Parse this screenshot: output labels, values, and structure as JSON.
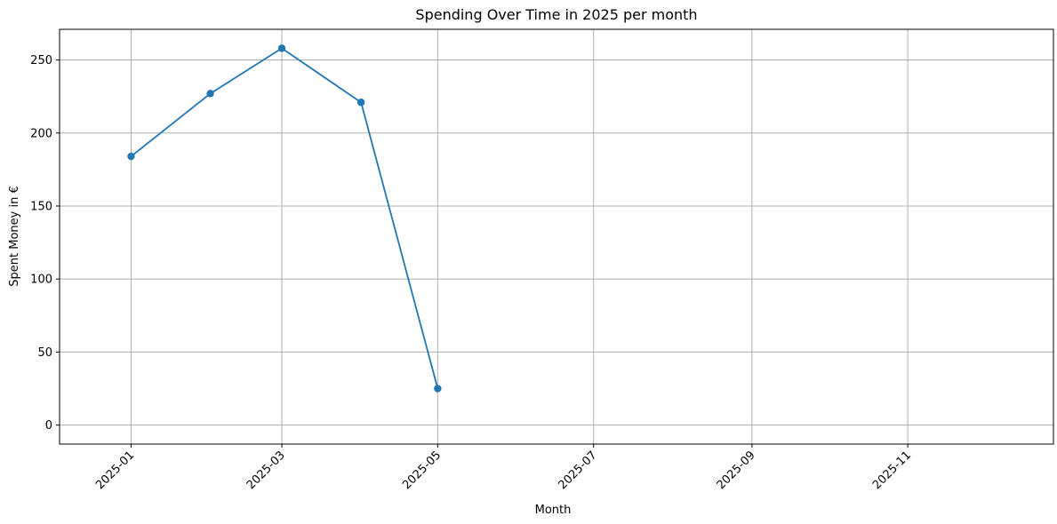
{
  "chart_data": {
    "type": "line",
    "title": "Spending Over Time in 2025 per month",
    "xlabel": "Month",
    "ylabel": "Spent Money in €",
    "x": [
      "2025-01",
      "2025-02",
      "2025-03",
      "2025-04",
      "2025-05"
    ],
    "series": [
      {
        "values": [
          184,
          227,
          258,
          221,
          25
        ],
        "color": "#1f77b4"
      }
    ],
    "xlim": [
      "2024-12-04",
      "2025-12-28"
    ],
    "ylim": [
      -13,
      271
    ],
    "x_ticks": [
      "2025-01",
      "2025-03",
      "2025-05",
      "2025-07",
      "2025-09",
      "2025-11"
    ],
    "y_ticks": [
      0,
      50,
      100,
      150,
      200,
      250
    ],
    "grid": true,
    "marker": "circle"
  }
}
